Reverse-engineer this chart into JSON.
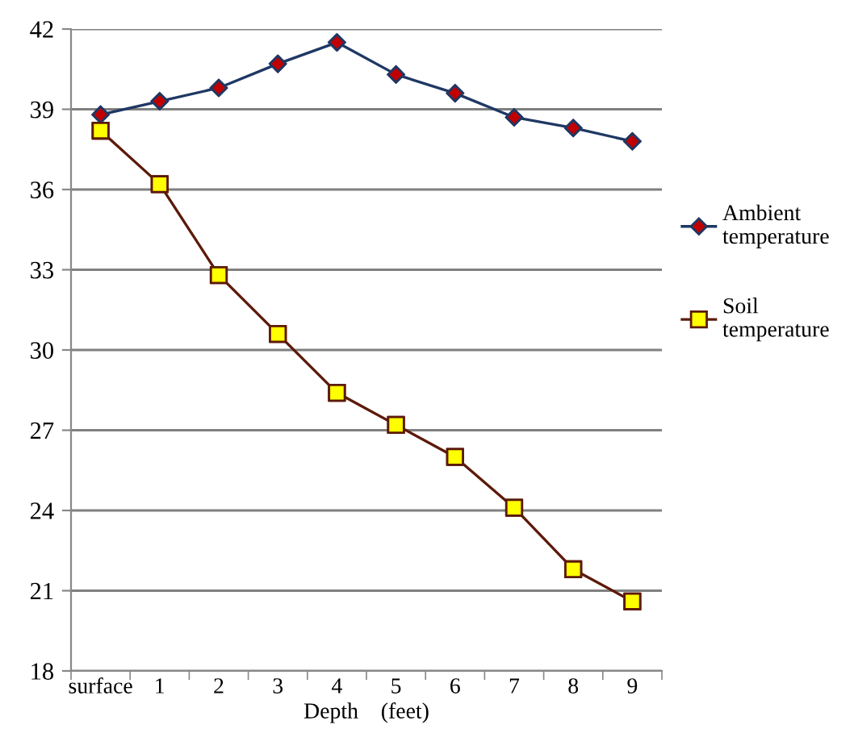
{
  "chart_data": {
    "type": "line",
    "xlabel": "Depth    (feet)",
    "categories": [
      "surface",
      "1",
      "2",
      "3",
      "4",
      "5",
      "6",
      "7",
      "8",
      "9"
    ],
    "series": [
      {
        "name": "Ambient temperature",
        "color": "#1f3864",
        "marker": "diamond",
        "colors": [
          "#c00000",
          "#c00000",
          "#c00000",
          "#c00000",
          "#c00000",
          "#c00000",
          "#c00000",
          "#c00000",
          "#c00000",
          "#c00000"
        ],
        "values": [
          38.8,
          39.3,
          39.8,
          40.7,
          41.5,
          40.3,
          39.6,
          38.7,
          38.3,
          37.8
        ]
      },
      {
        "name": "Soil temperature",
        "color": "#5c1a0a",
        "marker": "square",
        "colors": [
          "#ffff00",
          "#ffff00",
          "#ffff00",
          "#ffff00",
          "#ffff00",
          "#ffff00",
          "#ffff00",
          "#ffff00",
          "#ffff00",
          "#ffff00"
        ],
        "values": [
          38.2,
          36.2,
          32.8,
          30.6,
          28.4,
          27.2,
          26.0,
          24.1,
          21.8,
          20.6
        ]
      }
    ],
    "ylim": [
      18,
      42
    ],
    "yticks": [
      18,
      21,
      24,
      27,
      30,
      33,
      36,
      39,
      42
    ],
    "grid": "y",
    "legend": "right",
    "line_style": "solid"
  }
}
